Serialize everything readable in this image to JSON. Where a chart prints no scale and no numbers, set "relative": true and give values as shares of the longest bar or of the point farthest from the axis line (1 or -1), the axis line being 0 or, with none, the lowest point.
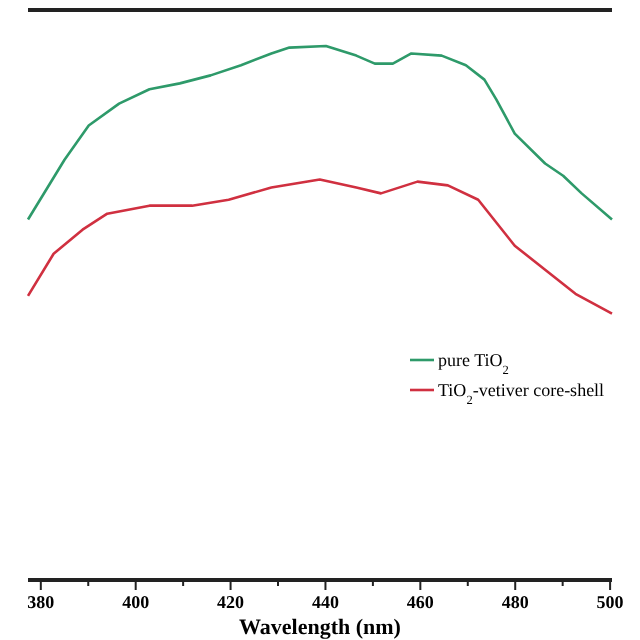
{
  "chart_data": {
    "type": "line",
    "relative": true,
    "xlabel": "Wavelength (nm)",
    "xlim": [
      377.3,
      500.4
    ],
    "xticks": [
      380,
      {
        "value": 390,
        "label": null
      },
      400,
      {
        "value": 410,
        "label": null
      },
      420,
      {
        "value": 430,
        "label": null
      },
      440,
      {
        "value": 450,
        "label": null
      },
      460,
      {
        "value": 470,
        "label": null
      },
      480,
      {
        "value": 490,
        "label": null
      },
      500
    ],
    "legend": "right",
    "marker": "none",
    "line_style": "solid",
    "series": [
      {
        "name": "pure TiO$_{2}$",
        "color": "#2e9a6a",
        "x": [
          377.3,
          385.0,
          390.1,
          396.5,
          402.9,
          409.3,
          415.8,
          422.2,
          428.6,
          432.4,
          440.1,
          446.5,
          450.4,
          454.2,
          458.1,
          464.5,
          469.6,
          473.5,
          476.0,
          479.9,
          486.3,
          490.1,
          494.0,
          500.4
        ],
        "values": [
          0.675,
          0.787,
          0.851,
          0.892,
          0.919,
          0.93,
          0.945,
          0.964,
          0.986,
          0.997,
          1,
          0.982,
          0.967,
          0.967,
          0.986,
          0.982,
          0.964,
          0.937,
          0.9,
          0.836,
          0.78,
          0.757,
          0.724,
          0.675
        ]
      },
      {
        "name": "TiO$_{2}$-vetiver core-shell",
        "color": "#d03040",
        "x": [
          377.3,
          382.7,
          388.8,
          394.0,
          402.9,
          411.9,
          419.6,
          428.6,
          438.8,
          446.5,
          451.7,
          459.4,
          465.8,
          472.2,
          479.9,
          486.3,
          492.7,
          500.4
        ],
        "values": [
          0.532,
          0.611,
          0.656,
          0.686,
          0.701,
          0.701,
          0.712,
          0.735,
          0.75,
          0.735,
          0.724,
          0.746,
          0.739,
          0.712,
          0.626,
          0.581,
          0.536,
          0.499
        ]
      }
    ]
  }
}
